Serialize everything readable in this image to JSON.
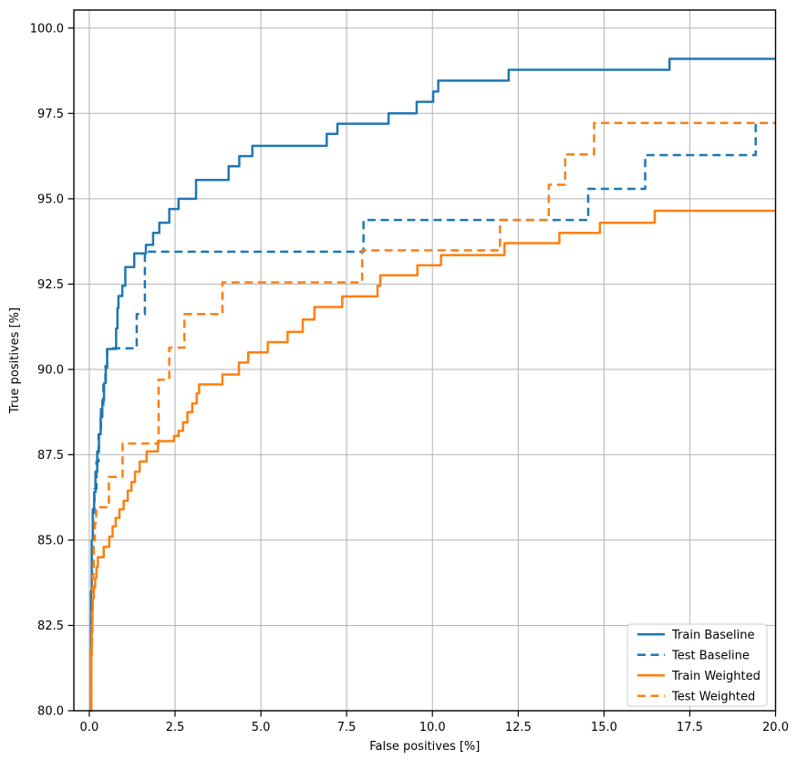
{
  "chart_data": {
    "type": "line",
    "subtype": "step-roc",
    "title": "",
    "xlabel": "False positives [%]",
    "ylabel": "True positives [%]",
    "xlim": [
      -0.45,
      20.0
    ],
    "ylim": [
      80.0,
      100.53
    ],
    "grid": true,
    "grid_color": "#b2b2b2",
    "spine_color": "#000000",
    "background": "#ffffff",
    "legend_position": "lower right",
    "xticks": [
      0.0,
      2.5,
      5.0,
      7.5,
      10.0,
      12.5,
      15.0,
      17.5,
      20.0
    ],
    "xtick_labels": [
      "0.0",
      "2.5",
      "5.0",
      "7.5",
      "10.0",
      "12.5",
      "15.0",
      "17.5",
      "20.0"
    ],
    "yticks": [
      80.0,
      82.5,
      85.0,
      87.5,
      90.0,
      92.5,
      95.0,
      97.5,
      100.0
    ],
    "ytick_labels": [
      "80.0",
      "82.5",
      "85.0",
      "87.5",
      "90.0",
      "92.5",
      "95.0",
      "97.5",
      "100.0"
    ],
    "series": [
      {
        "name": "Train Baseline",
        "color": "#1f77b4",
        "style": "solid",
        "line_width": 2.5,
        "points": [
          [
            0.04,
            80.0
          ],
          [
            0.05,
            83.5
          ],
          [
            0.07,
            85.0
          ],
          [
            0.1,
            85.9
          ],
          [
            0.14,
            86.4
          ],
          [
            0.18,
            87.0
          ],
          [
            0.23,
            87.6
          ],
          [
            0.28,
            88.1
          ],
          [
            0.33,
            88.6
          ],
          [
            0.38,
            89.1
          ],
          [
            0.43,
            89.6
          ],
          [
            0.48,
            90.05
          ],
          [
            0.52,
            90.6
          ],
          [
            0.78,
            91.2
          ],
          [
            0.82,
            91.8
          ],
          [
            0.85,
            92.15
          ],
          [
            0.96,
            92.45
          ],
          [
            1.05,
            93.0
          ],
          [
            1.31,
            93.4
          ],
          [
            1.65,
            93.65
          ],
          [
            1.86,
            94.0
          ],
          [
            2.04,
            94.3
          ],
          [
            2.33,
            94.7
          ],
          [
            2.6,
            95.0
          ],
          [
            3.11,
            95.55
          ],
          [
            4.06,
            95.95
          ],
          [
            4.37,
            96.25
          ],
          [
            4.75,
            96.55
          ],
          [
            6.92,
            96.9
          ],
          [
            7.23,
            97.2
          ],
          [
            8.72,
            97.5
          ],
          [
            9.54,
            97.84
          ],
          [
            10.02,
            98.14
          ],
          [
            10.17,
            98.46
          ],
          [
            12.22,
            98.78
          ],
          [
            16.91,
            99.1
          ]
        ]
      },
      {
        "name": "Test Baseline",
        "color": "#1f77b4",
        "style": "dashed",
        "line_width": 2.5,
        "points": [
          [
            0.05,
            80.0
          ],
          [
            0.06,
            82.5
          ],
          [
            0.08,
            84.5
          ],
          [
            0.11,
            85.8
          ],
          [
            0.15,
            86.5
          ],
          [
            0.21,
            87.3
          ],
          [
            0.27,
            88.1
          ],
          [
            0.34,
            88.9
          ],
          [
            0.41,
            89.6
          ],
          [
            0.47,
            90.1
          ],
          [
            0.52,
            90.62
          ],
          [
            1.38,
            91.62
          ],
          [
            1.62,
            93.45
          ],
          [
            7.99,
            94.38
          ],
          [
            14.54,
            95.29
          ],
          [
            16.2,
            96.28
          ],
          [
            19.42,
            97.22
          ]
        ]
      },
      {
        "name": "Train Weighted",
        "color": "#ff7f0e",
        "style": "solid",
        "line_width": 2.5,
        "points": [
          [
            0.05,
            80.0
          ],
          [
            0.06,
            81.6
          ],
          [
            0.07,
            82.3
          ],
          [
            0.09,
            82.9
          ],
          [
            0.1,
            83.3
          ],
          [
            0.13,
            83.6
          ],
          [
            0.17,
            83.9
          ],
          [
            0.21,
            84.2
          ],
          [
            0.25,
            84.5
          ],
          [
            0.42,
            84.8
          ],
          [
            0.58,
            85.1
          ],
          [
            0.68,
            85.4
          ],
          [
            0.77,
            85.65
          ],
          [
            0.88,
            85.9
          ],
          [
            1.0,
            86.15
          ],
          [
            1.12,
            86.45
          ],
          [
            1.23,
            86.7
          ],
          [
            1.33,
            87.0
          ],
          [
            1.47,
            87.3
          ],
          [
            1.67,
            87.6
          ],
          [
            2.0,
            87.9
          ],
          [
            2.47,
            88.05
          ],
          [
            2.6,
            88.2
          ],
          [
            2.73,
            88.45
          ],
          [
            2.86,
            88.75
          ],
          [
            3.0,
            89.0
          ],
          [
            3.13,
            89.3
          ],
          [
            3.2,
            89.56
          ],
          [
            3.88,
            89.85
          ],
          [
            4.36,
            90.2
          ],
          [
            4.63,
            90.5
          ],
          [
            5.2,
            90.8
          ],
          [
            5.78,
            91.1
          ],
          [
            6.22,
            91.46
          ],
          [
            6.56,
            91.83
          ],
          [
            7.37,
            92.14
          ],
          [
            8.4,
            92.45
          ],
          [
            8.48,
            92.76
          ],
          [
            9.56,
            93.05
          ],
          [
            10.25,
            93.35
          ],
          [
            12.1,
            93.7
          ],
          [
            13.7,
            94.0
          ],
          [
            14.88,
            94.3
          ],
          [
            16.48,
            94.65
          ]
        ]
      },
      {
        "name": "Test Weighted",
        "color": "#ff7f0e",
        "style": "dashed",
        "line_width": 2.5,
        "points": [
          [
            0.05,
            80.0
          ],
          [
            0.06,
            81.8
          ],
          [
            0.08,
            83.0
          ],
          [
            0.1,
            84.0
          ],
          [
            0.13,
            85.0
          ],
          [
            0.16,
            85.5
          ],
          [
            0.2,
            85.96
          ],
          [
            0.57,
            86.85
          ],
          [
            0.97,
            87.83
          ],
          [
            2.02,
            89.7
          ],
          [
            2.33,
            90.64
          ],
          [
            2.77,
            91.62
          ],
          [
            3.88,
            92.55
          ],
          [
            7.95,
            93.49
          ],
          [
            11.97,
            94.38
          ],
          [
            13.39,
            95.41
          ],
          [
            13.87,
            96.3
          ],
          [
            14.71,
            97.22
          ]
        ]
      }
    ]
  }
}
